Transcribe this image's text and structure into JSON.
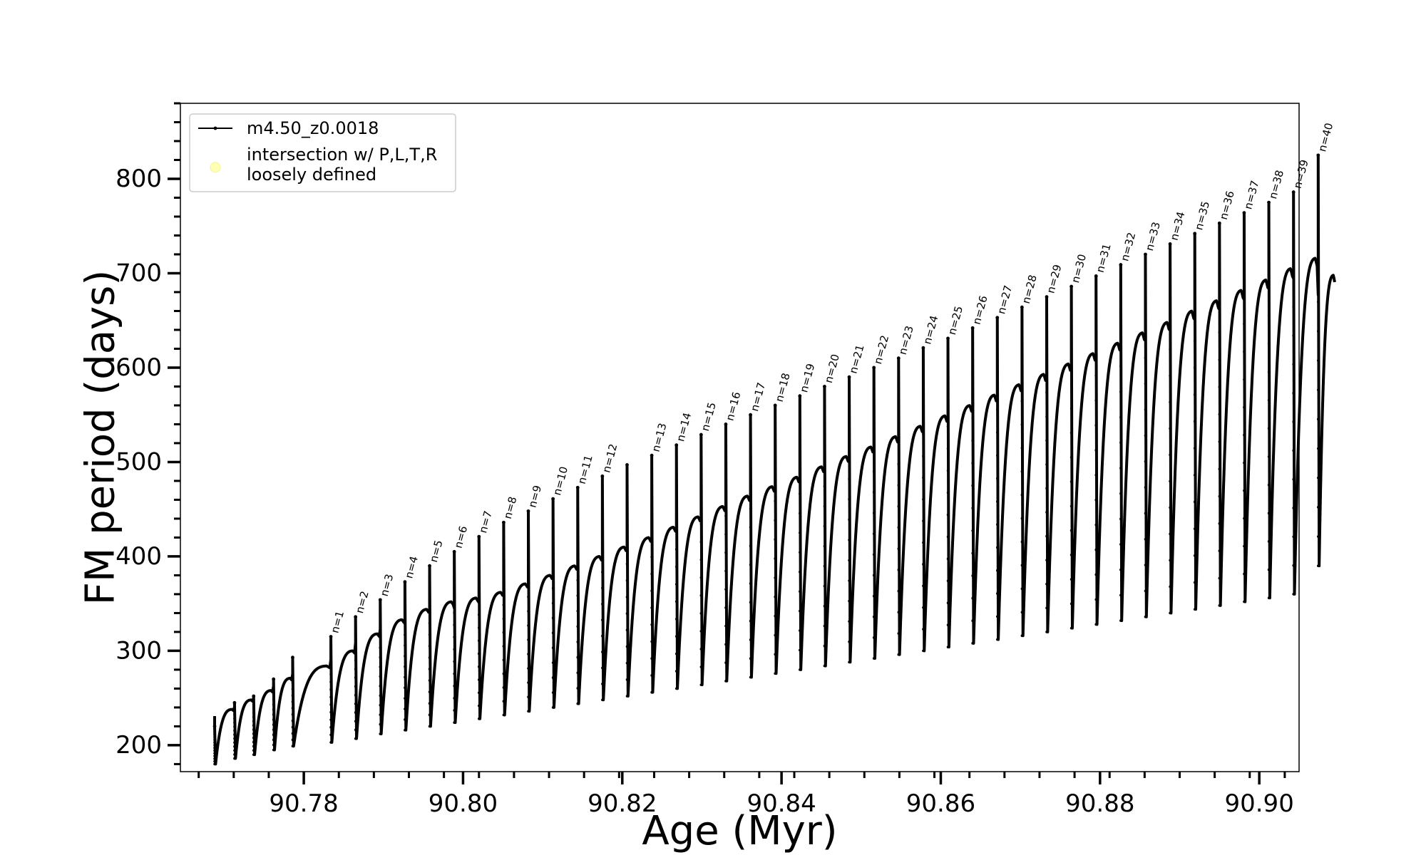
{
  "chart_data": {
    "type": "line",
    "title": "",
    "xlabel": "Age (Myr)",
    "ylabel": "FM period (days)",
    "xlim": [
      90.7645,
      90.905
    ],
    "ylim": [
      172,
      880
    ],
    "x_ticks": [
      90.78,
      90.8,
      90.82,
      90.84,
      90.86,
      90.88,
      90.9
    ],
    "x_tick_labels": [
      "90.78",
      "90.80",
      "90.82",
      "90.84",
      "90.86",
      "90.88",
      "90.90"
    ],
    "y_ticks": [
      200,
      300,
      400,
      500,
      600,
      700,
      800
    ],
    "y_tick_labels": [
      "200",
      "300",
      "400",
      "500",
      "600",
      "700",
      "800"
    ],
    "grid": false,
    "legend_position": "top-left",
    "legend": [
      {
        "label": "m4.50_z0.0018",
        "marker": "line-dot",
        "color": "#000000"
      },
      {
        "label": "intersection w/ P,L,T,R\nloosely defined",
        "marker": "circle",
        "color": "#ffffb3"
      }
    ],
    "series": [
      {
        "name": "m4.50_z0.0018",
        "color": "#000000",
        "description_of_points": "thermal pulse cycles; each cycle begins with a spike to the listed peak then drops to the listed minimum, followed by a rise to the plateau value",
        "cycles": [
          {
            "age": 90.7688,
            "peak": 220,
            "min": 180,
            "plateau": 238
          },
          {
            "age": 90.7713,
            "peak": 245,
            "min": 186,
            "plateau": 248
          },
          {
            "age": 90.7737,
            "peak": 252,
            "min": 190,
            "plateau": 258
          },
          {
            "age": 90.7762,
            "peak": 270,
            "min": 195,
            "plateau": 271
          },
          {
            "age": 90.7786,
            "peak": 293,
            "min": 199,
            "plateau": 284
          },
          {
            "age": 90.7834,
            "peak": 315,
            "min": 203,
            "plateau": 300,
            "label": "n=1"
          },
          {
            "age": 90.7865,
            "peak": 336,
            "min": 207,
            "plateau": 318,
            "label": "n=2"
          },
          {
            "age": 90.7896,
            "peak": 354,
            "min": 212,
            "plateau": 333,
            "label": "n=3"
          },
          {
            "age": 90.7927,
            "peak": 373,
            "min": 216,
            "plateau": 344,
            "label": "n=4"
          },
          {
            "age": 90.7958,
            "peak": 390,
            "min": 220,
            "plateau": 352,
            "label": "n=5"
          },
          {
            "age": 90.7989,
            "peak": 405,
            "min": 224,
            "plateau": 356,
            "label": "n=6"
          },
          {
            "age": 90.802,
            "peak": 421,
            "min": 228,
            "plateau": 362,
            "label": "n=7"
          },
          {
            "age": 90.8051,
            "peak": 436,
            "min": 232,
            "plateau": 371,
            "label": "n=8"
          },
          {
            "age": 90.8082,
            "peak": 448,
            "min": 236,
            "plateau": 380,
            "label": "n=9"
          },
          {
            "age": 90.8113,
            "peak": 461,
            "min": 240,
            "plateau": 390,
            "label": "n=10"
          },
          {
            "age": 90.8144,
            "peak": 473,
            "min": 244,
            "plateau": 400,
            "label": "n=11"
          },
          {
            "age": 90.8175,
            "peak": 485,
            "min": 248,
            "plateau": 410,
            "label": "n=12"
          },
          {
            "age": 90.8206,
            "peak": 497,
            "min": 252,
            "plateau": 420
          },
          {
            "age": 90.8237,
            "peak": 507,
            "min": 256,
            "plateau": 431,
            "label": "n=13"
          },
          {
            "age": 90.8268,
            "peak": 518,
            "min": 260,
            "plateau": 442,
            "label": "n=14"
          },
          {
            "age": 90.8299,
            "peak": 529,
            "min": 264,
            "plateau": 453,
            "label": "n=15"
          },
          {
            "age": 90.833,
            "peak": 540,
            "min": 268,
            "plateau": 464,
            "label": "n=16"
          },
          {
            "age": 90.8361,
            "peak": 550,
            "min": 272,
            "plateau": 474,
            "label": "n=17"
          },
          {
            "age": 90.8392,
            "peak": 560,
            "min": 276,
            "plateau": 484,
            "label": "n=18"
          },
          {
            "age": 90.8423,
            "peak": 570,
            "min": 280,
            "plateau": 495,
            "label": "n=19"
          },
          {
            "age": 90.8454,
            "peak": 580,
            "min": 284,
            "plateau": 506,
            "label": "n=20"
          },
          {
            "age": 90.8485,
            "peak": 590,
            "min": 288,
            "plateau": 516,
            "label": "n=21"
          },
          {
            "age": 90.8516,
            "peak": 600,
            "min": 292,
            "plateau": 527,
            "label": "n=22"
          },
          {
            "age": 90.8547,
            "peak": 610,
            "min": 296,
            "plateau": 538,
            "label": "n=23"
          },
          {
            "age": 90.8578,
            "peak": 621,
            "min": 300,
            "plateau": 549,
            "label": "n=24"
          },
          {
            "age": 90.8609,
            "peak": 631,
            "min": 304,
            "plateau": 560,
            "label": "n=25"
          },
          {
            "age": 90.864,
            "peak": 642,
            "min": 308,
            "plateau": 571,
            "label": "n=26"
          },
          {
            "age": 90.8671,
            "peak": 653,
            "min": 312,
            "plateau": 582,
            "label": "n=27"
          },
          {
            "age": 90.8702,
            "peak": 664,
            "min": 316,
            "plateau": 593,
            "label": "n=28"
          },
          {
            "age": 90.8733,
            "peak": 675,
            "min": 320,
            "plateau": 604,
            "label": "n=29"
          },
          {
            "age": 90.8764,
            "peak": 686,
            "min": 324,
            "plateau": 615,
            "label": "n=30"
          },
          {
            "age": 90.8795,
            "peak": 697,
            "min": 328,
            "plateau": 626,
            "label": "n=31"
          },
          {
            "age": 90.8826,
            "peak": 709,
            "min": 332,
            "plateau": 637,
            "label": "n=32"
          },
          {
            "age": 90.8857,
            "peak": 720,
            "min": 336,
            "plateau": 648,
            "label": "n=33"
          },
          {
            "age": 90.8888,
            "peak": 731,
            "min": 340,
            "plateau": 660,
            "label": "n=34"
          },
          {
            "age": 90.8919,
            "peak": 742,
            "min": 344,
            "plateau": 671,
            "label": "n=35"
          },
          {
            "age": 90.895,
            "peak": 753,
            "min": 348,
            "plateau": 682,
            "label": "n=36"
          },
          {
            "age": 90.8981,
            "peak": 764,
            "min": 352,
            "plateau": 693,
            "label": "n=37"
          },
          {
            "age": 90.9012,
            "peak": 775,
            "min": 356,
            "plateau": 705,
            "label": "n=38"
          },
          {
            "age": 90.9043,
            "peak": 786,
            "min": 360,
            "plateau": 716,
            "label": "n=39"
          },
          {
            "age": 90.9074,
            "peak": 825,
            "min": 390,
            "plateau": 698,
            "label": "n=40"
          }
        ]
      }
    ]
  }
}
